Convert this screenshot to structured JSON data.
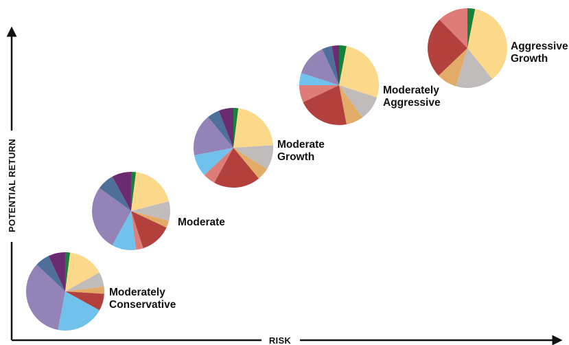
{
  "chart_data": {
    "type": "pie",
    "xlabel": "RISK",
    "ylabel": "POTENTIAL RETURN",
    "slice_colors": [
      "#17803a",
      "#fcd98a",
      "#c0bcbc",
      "#e3ab68",
      "#b2403d",
      "#de7d77",
      "#70c2ec",
      "#9383b7",
      "#4f6f9b",
      "#6b2b70"
    ],
    "pies": [
      {
        "label": [
          "Moderately",
          "Conservative"
        ],
        "values": [
          2,
          15,
          6,
          3,
          7,
          0,
          20,
          34,
          6,
          7
        ]
      },
      {
        "label": [
          "Moderate"
        ],
        "values": [
          2,
          19,
          8,
          3,
          13,
          3,
          10,
          27,
          7,
          8
        ]
      },
      {
        "label": [
          "Moderate",
          "Growth"
        ],
        "values": [
          2,
          22,
          10,
          5,
          19,
          5,
          9,
          17,
          5,
          6
        ]
      },
      {
        "label": [
          "Moderately",
          "Aggressive"
        ],
        "values": [
          3,
          27,
          10,
          7,
          21,
          7,
          5,
          13,
          4,
          3
        ]
      },
      {
        "label": [
          "Aggressive",
          "Growth"
        ],
        "values": [
          3,
          35,
          15,
          8,
          24,
          12,
          0,
          0,
          0,
          0
        ]
      }
    ]
  }
}
